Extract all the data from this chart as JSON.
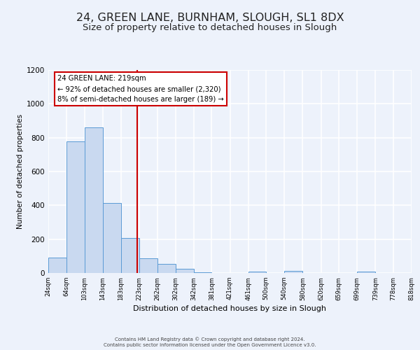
{
  "title": "24, GREEN LANE, BURNHAM, SLOUGH, SL1 8DX",
  "subtitle": "Size of property relative to detached houses in Slough",
  "xlabel": "Distribution of detached houses by size in Slough",
  "ylabel": "Number of detached properties",
  "footer_line1": "Contains HM Land Registry data © Crown copyright and database right 2024.",
  "footer_line2": "Contains public sector information licensed under the Open Government Licence v3.0.",
  "annotation_line1": "24 GREEN LANE: 219sqm",
  "annotation_line2": "← 92% of detached houses are smaller (2,320)",
  "annotation_line3": "8% of semi-detached houses are larger (189) →",
  "bar_edges": [
    24,
    64,
    103,
    143,
    183,
    223,
    262,
    302,
    342,
    381,
    421,
    461,
    500,
    540,
    580,
    620,
    659,
    699,
    739,
    778,
    818
  ],
  "bar_heights": [
    90,
    780,
    860,
    415,
    205,
    85,
    55,
    25,
    5,
    0,
    0,
    10,
    0,
    12,
    0,
    0,
    0,
    10,
    0,
    0,
    0
  ],
  "bar_color": "#c9d9f0",
  "bar_edge_color": "#5b9bd5",
  "vline_x": 219,
  "vline_color": "#cc0000",
  "annotation_box_edgecolor": "#cc0000",
  "ylim": [
    0,
    1200
  ],
  "yticks": [
    0,
    200,
    400,
    600,
    800,
    1000,
    1200
  ],
  "bg_color": "#edf2fb",
  "grid_color": "#ffffff",
  "title_fontsize": 11.5,
  "subtitle_fontsize": 9.5,
  "xlabel_fontsize": 8,
  "ylabel_fontsize": 7.5,
  "tick_label_fontsize": 6,
  "ytick_fontsize": 7.5,
  "tick_labels": [
    "24sqm",
    "64sqm",
    "103sqm",
    "143sqm",
    "183sqm",
    "223sqm",
    "262sqm",
    "302sqm",
    "342sqm",
    "381sqm",
    "421sqm",
    "461sqm",
    "500sqm",
    "540sqm",
    "580sqm",
    "620sqm",
    "659sqm",
    "699sqm",
    "739sqm",
    "778sqm",
    "818sqm"
  ],
  "footer_fontsize": 5.0
}
